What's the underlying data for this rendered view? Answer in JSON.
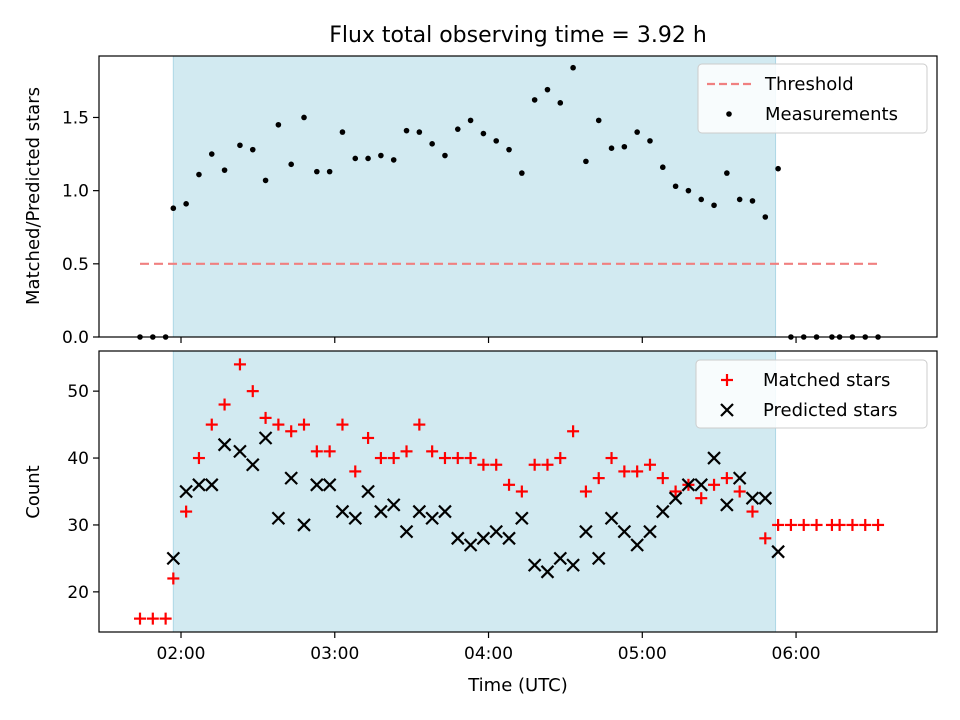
{
  "title": "Flux total observing time = 3.92 h",
  "chart_data": [
    {
      "type": "scatter",
      "panel": "top",
      "ylabel": "Matched/Predicted stars",
      "ylim": [
        0,
        1.92
      ],
      "xlim": [
        "01:28",
        "06:55"
      ],
      "yticks": [
        {
          "v": 0.0,
          "label": "0.0"
        },
        {
          "v": 0.5,
          "label": "0.5"
        },
        {
          "v": 1.0,
          "label": "1.0"
        },
        {
          "v": 1.5,
          "label": "1.5"
        }
      ],
      "shaded_interval": [
        "01:57",
        "05:52"
      ],
      "threshold": {
        "name": "Threshold",
        "y": 0.5,
        "x_range": [
          "01:44",
          "06:32"
        ],
        "color": "#f08080",
        "style": "dashed"
      },
      "series": [
        {
          "name": "Measurements",
          "marker": "dot",
          "color": "#000000",
          "points": [
            [
              "01:44",
              0.0
            ],
            [
              "01:49",
              0.0
            ],
            [
              "01:54",
              0.0
            ],
            [
              "01:57",
              0.88
            ],
            [
              "02:02",
              0.91
            ],
            [
              "02:07",
              1.11
            ],
            [
              "02:12",
              1.25
            ],
            [
              "02:17",
              1.14
            ],
            [
              "02:23",
              1.31
            ],
            [
              "02:28",
              1.28
            ],
            [
              "02:33",
              1.07
            ],
            [
              "02:38",
              1.45
            ],
            [
              "02:43",
              1.18
            ],
            [
              "02:48",
              1.5
            ],
            [
              "02:53",
              1.13
            ],
            [
              "02:58",
              1.13
            ],
            [
              "03:03",
              1.4
            ],
            [
              "03:08",
              1.22
            ],
            [
              "03:13",
              1.22
            ],
            [
              "03:18",
              1.24
            ],
            [
              "03:23",
              1.21
            ],
            [
              "03:28",
              1.41
            ],
            [
              "03:33",
              1.4
            ],
            [
              "03:38",
              1.32
            ],
            [
              "03:43",
              1.24
            ],
            [
              "03:48",
              1.42
            ],
            [
              "03:53",
              1.48
            ],
            [
              "03:58",
              1.39
            ],
            [
              "04:03",
              1.34
            ],
            [
              "04:08",
              1.28
            ],
            [
              "04:13",
              1.12
            ],
            [
              "04:18",
              1.62
            ],
            [
              "04:23",
              1.69
            ],
            [
              "04:28",
              1.6
            ],
            [
              "04:33",
              1.84
            ],
            [
              "04:38",
              1.2
            ],
            [
              "04:43",
              1.48
            ],
            [
              "04:48",
              1.29
            ],
            [
              "04:53",
              1.3
            ],
            [
              "04:58",
              1.4
            ],
            [
              "05:03",
              1.34
            ],
            [
              "05:08",
              1.16
            ],
            [
              "05:13",
              1.03
            ],
            [
              "05:18",
              1.0
            ],
            [
              "05:23",
              0.94
            ],
            [
              "05:28",
              0.9
            ],
            [
              "05:33",
              1.12
            ],
            [
              "05:38",
              0.94
            ],
            [
              "05:43",
              0.93
            ],
            [
              "05:48",
              0.82
            ],
            [
              "05:53",
              1.15
            ],
            [
              "05:58",
              0.0
            ],
            [
              "06:03",
              0.0
            ],
            [
              "06:08",
              0.0
            ],
            [
              "06:14",
              0.0
            ],
            [
              "06:17",
              0.0
            ],
            [
              "06:22",
              0.0
            ],
            [
              "06:27",
              0.0
            ],
            [
              "06:32",
              0.0
            ]
          ]
        }
      ],
      "legend": {
        "placement": "upper right",
        "entries": [
          "Threshold",
          "Measurements"
        ]
      }
    },
    {
      "type": "scatter",
      "panel": "bottom",
      "ylabel": "Count",
      "xlabel": "Time (UTC)",
      "ylim": [
        14,
        56
      ],
      "xlim": [
        "01:28",
        "06:55"
      ],
      "yticks": [
        {
          "v": 20,
          "label": "20"
        },
        {
          "v": 30,
          "label": "30"
        },
        {
          "v": 40,
          "label": "40"
        },
        {
          "v": 50,
          "label": "50"
        }
      ],
      "xticks": [
        {
          "t": "02:00",
          "label": "02:00"
        },
        {
          "t": "03:00",
          "label": "03:00"
        },
        {
          "t": "04:00",
          "label": "04:00"
        },
        {
          "t": "05:00",
          "label": "05:00"
        },
        {
          "t": "06:00",
          "label": "06:00"
        }
      ],
      "shaded_interval": [
        "01:57",
        "05:52"
      ],
      "series": [
        {
          "name": "Matched stars",
          "marker": "plus",
          "color": "#ff0000",
          "points": [
            [
              "01:44",
              16
            ],
            [
              "01:49",
              16
            ],
            [
              "01:54",
              16
            ],
            [
              "01:57",
              22
            ],
            [
              "02:02",
              32
            ],
            [
              "02:07",
              40
            ],
            [
              "02:12",
              45
            ],
            [
              "02:17",
              48
            ],
            [
              "02:23",
              54
            ],
            [
              "02:28",
              50
            ],
            [
              "02:33",
              46
            ],
            [
              "02:38",
              45
            ],
            [
              "02:43",
              44
            ],
            [
              "02:48",
              45
            ],
            [
              "02:53",
              41
            ],
            [
              "02:58",
              41
            ],
            [
              "03:03",
              45
            ],
            [
              "03:08",
              38
            ],
            [
              "03:13",
              43
            ],
            [
              "03:18",
              40
            ],
            [
              "03:23",
              40
            ],
            [
              "03:28",
              41
            ],
            [
              "03:33",
              45
            ],
            [
              "03:38",
              41
            ],
            [
              "03:43",
              40
            ],
            [
              "03:48",
              40
            ],
            [
              "03:53",
              40
            ],
            [
              "03:58",
              39
            ],
            [
              "04:03",
              39
            ],
            [
              "04:08",
              36
            ],
            [
              "04:13",
              35
            ],
            [
              "04:18",
              39
            ],
            [
              "04:23",
              39
            ],
            [
              "04:28",
              40
            ],
            [
              "04:33",
              44
            ],
            [
              "04:38",
              35
            ],
            [
              "04:43",
              37
            ],
            [
              "04:48",
              40
            ],
            [
              "04:53",
              38
            ],
            [
              "04:58",
              38
            ],
            [
              "05:03",
              39
            ],
            [
              "05:08",
              37
            ],
            [
              "05:13",
              35
            ],
            [
              "05:18",
              36
            ],
            [
              "05:23",
              34
            ],
            [
              "05:28",
              36
            ],
            [
              "05:33",
              37
            ],
            [
              "05:38",
              35
            ],
            [
              "05:43",
              32
            ],
            [
              "05:48",
              28
            ],
            [
              "05:53",
              30
            ],
            [
              "05:58",
              30
            ],
            [
              "06:03",
              30
            ],
            [
              "06:08",
              30
            ],
            [
              "06:14",
              30
            ],
            [
              "06:17",
              30
            ],
            [
              "06:22",
              30
            ],
            [
              "06:27",
              30
            ],
            [
              "06:32",
              30
            ]
          ]
        },
        {
          "name": "Predicted stars",
          "marker": "x",
          "color": "#000000",
          "points": [
            [
              "01:57",
              25
            ],
            [
              "02:02",
              35
            ],
            [
              "02:07",
              36
            ],
            [
              "02:12",
              36
            ],
            [
              "02:17",
              42
            ],
            [
              "02:23",
              41
            ],
            [
              "02:28",
              39
            ],
            [
              "02:33",
              43
            ],
            [
              "02:38",
              31
            ],
            [
              "02:43",
              37
            ],
            [
              "02:48",
              30
            ],
            [
              "02:53",
              36
            ],
            [
              "02:58",
              36
            ],
            [
              "03:03",
              32
            ],
            [
              "03:08",
              31
            ],
            [
              "03:13",
              35
            ],
            [
              "03:18",
              32
            ],
            [
              "03:23",
              33
            ],
            [
              "03:28",
              29
            ],
            [
              "03:33",
              32
            ],
            [
              "03:38",
              31
            ],
            [
              "03:43",
              32
            ],
            [
              "03:48",
              28
            ],
            [
              "03:53",
              27
            ],
            [
              "03:58",
              28
            ],
            [
              "04:03",
              29
            ],
            [
              "04:08",
              28
            ],
            [
              "04:13",
              31
            ],
            [
              "04:18",
              24
            ],
            [
              "04:23",
              23
            ],
            [
              "04:28",
              25
            ],
            [
              "04:33",
              24
            ],
            [
              "04:38",
              29
            ],
            [
              "04:43",
              25
            ],
            [
              "04:48",
              31
            ],
            [
              "04:53",
              29
            ],
            [
              "04:58",
              27
            ],
            [
              "05:03",
              29
            ],
            [
              "05:08",
              32
            ],
            [
              "05:13",
              34
            ],
            [
              "05:18",
              36
            ],
            [
              "05:23",
              36
            ],
            [
              "05:28",
              40
            ],
            [
              "05:33",
              33
            ],
            [
              "05:38",
              37
            ],
            [
              "05:43",
              34
            ],
            [
              "05:48",
              34
            ],
            [
              "05:53",
              26
            ]
          ]
        }
      ],
      "legend": {
        "placement": "upper right",
        "entries": [
          "Matched stars",
          "Predicted stars"
        ]
      }
    }
  ],
  "colors": {
    "shade": "#add8e6",
    "threshold": "#f08080",
    "matched": "#ff0000",
    "predicted": "#000000",
    "measurements": "#000000"
  }
}
